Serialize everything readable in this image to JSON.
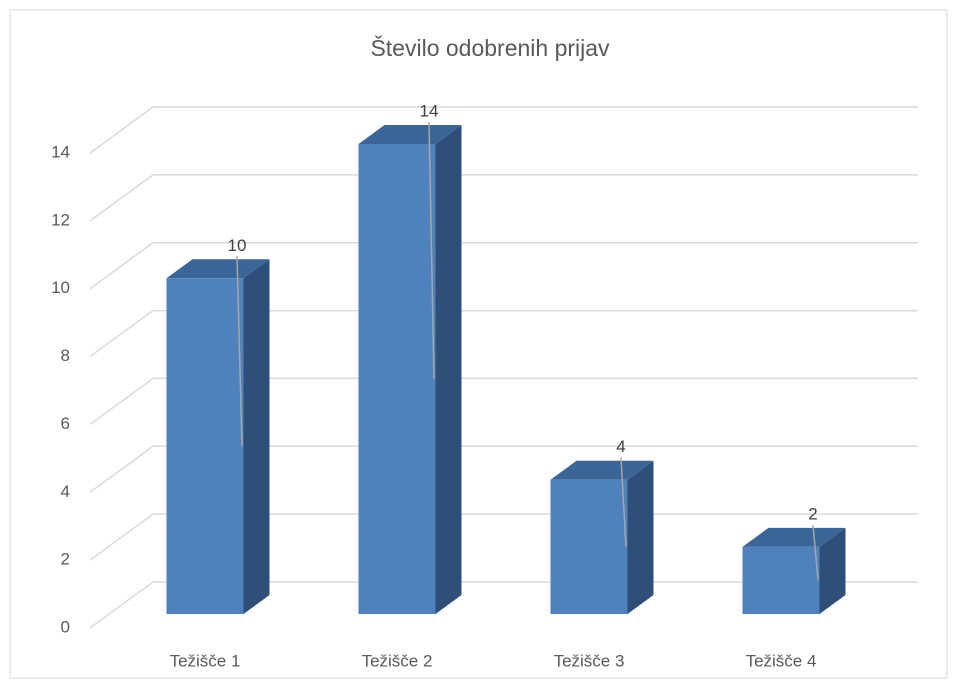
{
  "chart_data": {
    "type": "bar",
    "title": "Število odobrenih prijav",
    "categories": [
      "Težišče 1",
      "Težišče 2",
      "Težišče 3",
      "Težišče 4"
    ],
    "values": [
      10,
      14,
      4,
      2
    ],
    "color": "#4f81bd",
    "ylim": [
      0,
      14
    ],
    "yticks": [
      0,
      2,
      4,
      6,
      8,
      10,
      12,
      14
    ],
    "grid": true
  }
}
